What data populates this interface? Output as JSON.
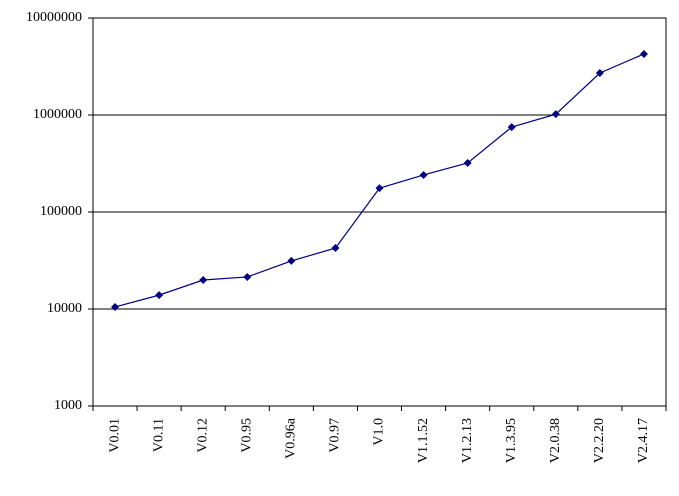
{
  "chart_data": {
    "type": "line",
    "categories": [
      "V0.01",
      "V0.11",
      "V0.12",
      "V0.95",
      "V0.96a",
      "V0.97",
      "V1.0",
      "V1.1.52",
      "V1.2.13",
      "V1.3.95",
      "V2.0.38",
      "V2.2.20",
      "V2.4.17"
    ],
    "values": [
      10500,
      13900,
      19900,
      21400,
      31300,
      42500,
      176000,
      241000,
      320000,
      751000,
      1020000,
      2710000,
      4260000
    ],
    "color": "#000080",
    "ylim": [
      1000,
      10000000
    ],
    "yticks": [
      1000,
      10000,
      100000,
      1000000,
      10000000
    ],
    "log_y": true,
    "grid": true
  }
}
